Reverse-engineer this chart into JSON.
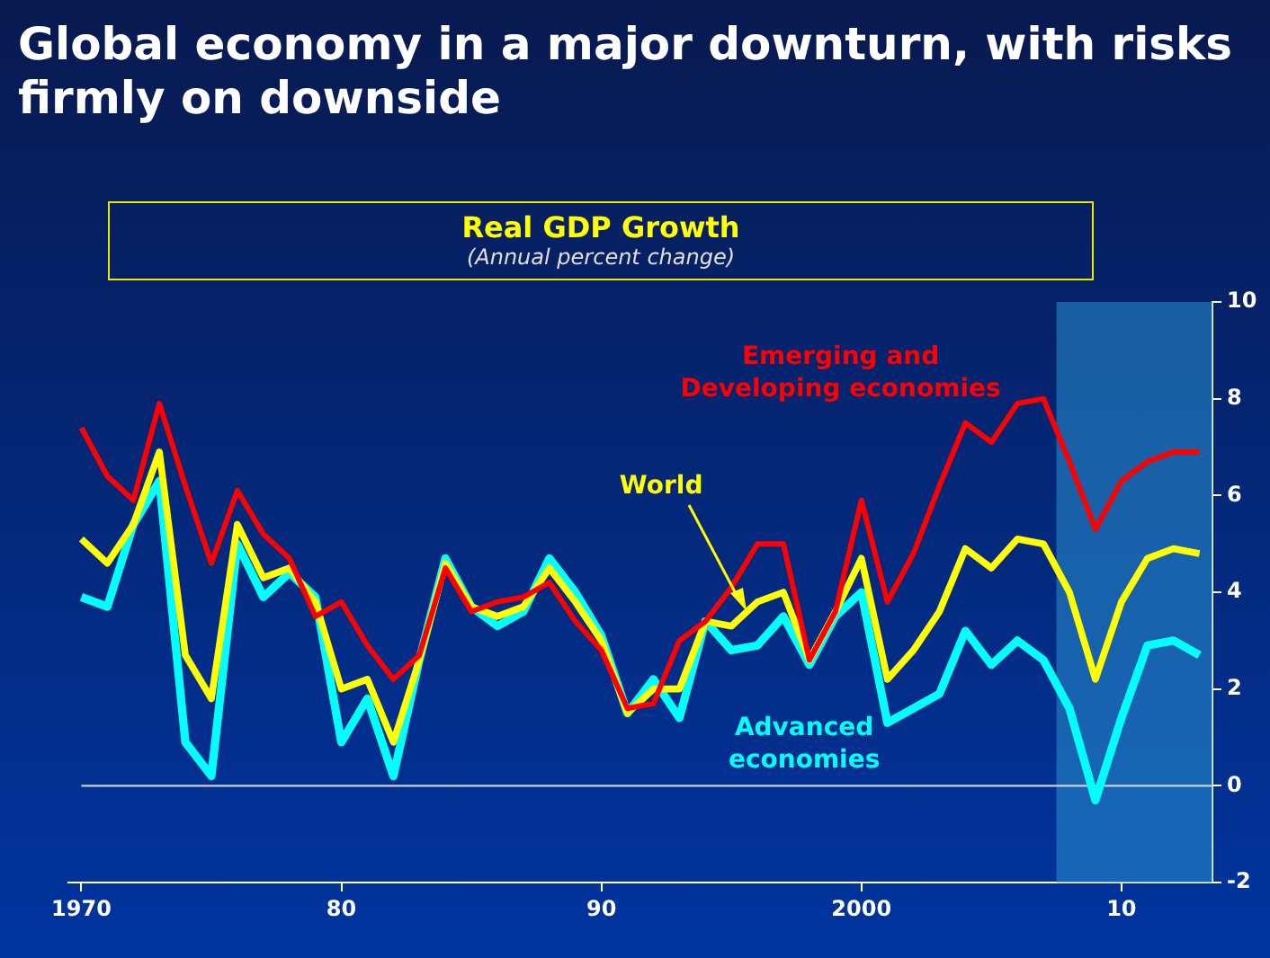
{
  "chart_data": {
    "type": "line",
    "title": "Global economy in a major downturn, with risks firmly on downside",
    "subtitle": "Real GDP Growth",
    "annotations": [
      "(Annual percent change)"
    ],
    "x": [
      1970,
      1971,
      1972,
      1973,
      1974,
      1975,
      1976,
      1977,
      1978,
      1979,
      1980,
      1981,
      1982,
      1983,
      1984,
      1985,
      1986,
      1987,
      1988,
      1989,
      1990,
      1991,
      1992,
      1993,
      1994,
      1995,
      1996,
      1997,
      1998,
      1999,
      2000,
      2001,
      2002,
      2003,
      2004,
      2005,
      2006,
      2007,
      2008,
      2009,
      2010,
      2011,
      2012,
      2013
    ],
    "series": [
      {
        "name": "Emerging and Developing economies",
        "color": "#ff0000",
        "values": [
          7.4,
          6.4,
          5.9,
          7.9,
          6.2,
          4.6,
          6.1,
          5.2,
          4.7,
          3.5,
          3.8,
          2.9,
          2.2,
          2.7,
          4.5,
          3.6,
          3.8,
          3.9,
          4.2,
          3.4,
          2.8,
          1.6,
          1.7,
          3.0,
          3.4,
          4.1,
          5.0,
          5.0,
          2.6,
          3.6,
          5.9,
          3.8,
          4.8,
          6.2,
          7.5,
          7.1,
          7.9,
          8.0,
          6.7,
          5.3,
          6.3,
          6.7,
          6.9,
          6.9
        ]
      },
      {
        "name": "World",
        "color": "#ffff00",
        "values": [
          5.1,
          4.6,
          5.4,
          6.9,
          2.7,
          1.8,
          5.4,
          4.3,
          4.5,
          3.8,
          2.0,
          2.2,
          0.9,
          2.6,
          4.6,
          3.7,
          3.5,
          3.7,
          4.5,
          3.8,
          3.0,
          1.5,
          2.0,
          2.0,
          3.4,
          3.3,
          3.8,
          4.0,
          2.6,
          3.6,
          4.7,
          2.2,
          2.8,
          3.6,
          4.9,
          4.5,
          5.1,
          5.0,
          4.0,
          2.2,
          3.8,
          4.7,
          4.9,
          4.8
        ]
      },
      {
        "name": "Advanced economies",
        "color": "#00ffff",
        "values": [
          3.9,
          3.7,
          5.4,
          6.3,
          0.9,
          0.2,
          5.0,
          3.9,
          4.4,
          3.9,
          0.9,
          1.8,
          0.2,
          2.6,
          4.7,
          3.7,
          3.3,
          3.6,
          4.7,
          4.0,
          3.1,
          1.5,
          2.2,
          1.4,
          3.4,
          2.8,
          2.9,
          3.5,
          2.5,
          3.5,
          4.0,
          1.3,
          1.6,
          1.9,
          3.2,
          2.5,
          3.0,
          2.6,
          1.6,
          -0.3,
          1.4,
          2.9,
          3.0,
          2.7
        ]
      }
    ],
    "xlim": [
      1969.5,
      2013.5
    ],
    "xticks": [
      1970,
      {
        "value": 1980,
        "label": "80"
      },
      {
        "value": 1990,
        "label": "90"
      },
      2000,
      {
        "value": 2010,
        "label": "10"
      }
    ],
    "ylim": [
      -2,
      10
    ],
    "yticks": [
      -2,
      0,
      2,
      4,
      6,
      8,
      10
    ],
    "ref_lines": [
      {
        "axis": "y",
        "value": 0,
        "color": "#c8d0e8"
      }
    ],
    "bands": [
      {
        "axis": "x",
        "from": 2007.5,
        "to": 2013.5,
        "color": "#2a90d0"
      }
    ]
  }
}
